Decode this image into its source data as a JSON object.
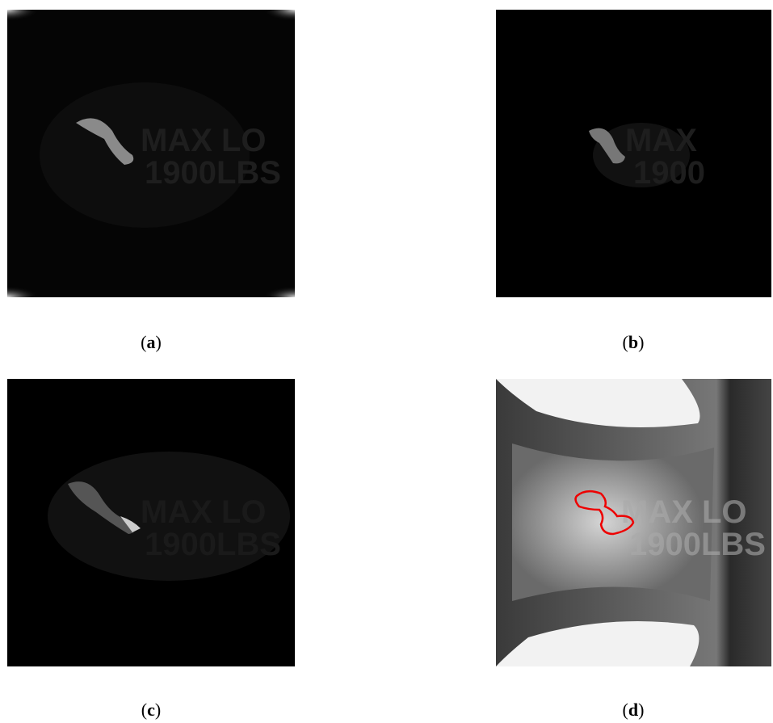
{
  "panels": [
    {
      "caption": [
        "(",
        "a",
        ")"
      ],
      "image_text": [
        "MAX LO",
        "1900LBS"
      ]
    },
    {
      "caption": [
        "(",
        "b",
        ")"
      ],
      "image_text": [
        "MAX",
        "1900"
      ]
    },
    {
      "caption": [
        "(",
        "c",
        ")"
      ],
      "image_text": [
        "MAX LO",
        "1900LBS"
      ]
    },
    {
      "caption": [
        "(",
        "d",
        ")"
      ],
      "image_text": [
        "MAX LO",
        "1900LBS"
      ]
    }
  ]
}
